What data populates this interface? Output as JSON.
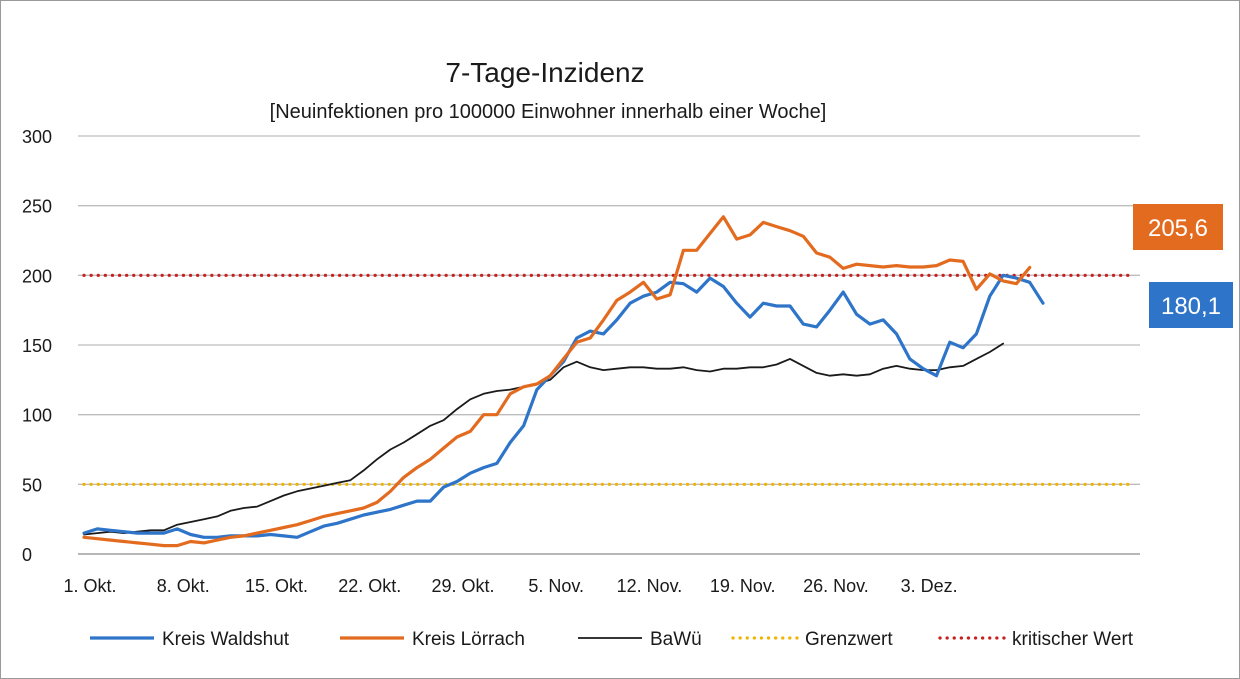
{
  "chart_data": {
    "type": "line",
    "title": "7-Tage-Inzidenz",
    "subtitle": "[Neuinfektionen  pro 100000 Einwohner innerhalb einer Woche]",
    "x_labels": [
      "1. Okt.",
      "8. Okt.",
      "15. Okt.",
      "22. Okt.",
      "29. Okt.",
      "5. Nov.",
      "12. Nov.",
      "19. Nov.",
      "26. Nov.",
      "3. Dez."
    ],
    "ylim": [
      0,
      300
    ],
    "yticks": [
      0,
      50,
      100,
      150,
      200,
      250,
      300
    ],
    "grid": true,
    "legend_position": "bottom",
    "series": [
      {
        "name": "Kreis Waldshut",
        "color": "#2e75c9",
        "style": "solid",
        "values": [
          15,
          18,
          17,
          16,
          15,
          15,
          15,
          18,
          14,
          12,
          12,
          13,
          13,
          13,
          14,
          13,
          12,
          16,
          20,
          22,
          25,
          28,
          30,
          32,
          35,
          38,
          38,
          48,
          52,
          58,
          62,
          65,
          80,
          92,
          118,
          128,
          138,
          155,
          160,
          158,
          168,
          180,
          185,
          188,
          195,
          194,
          188,
          198,
          192,
          180,
          170,
          180,
          178,
          178,
          165,
          163,
          175,
          188,
          172,
          165,
          168,
          158,
          140,
          133,
          128,
          152,
          148,
          158,
          185,
          200,
          198,
          195,
          180
        ]
      },
      {
        "name": "Kreis Lörrach",
        "color": "#e36b1f",
        "style": "solid",
        "values": [
          12,
          11,
          10,
          9,
          8,
          7,
          6,
          6,
          9,
          8,
          10,
          12,
          13,
          15,
          17,
          19,
          21,
          24,
          27,
          29,
          31,
          33,
          37,
          45,
          55,
          62,
          68,
          76,
          84,
          88,
          100,
          100,
          115,
          120,
          122,
          128,
          140,
          152,
          155,
          168,
          182,
          188,
          195,
          183,
          186,
          218,
          218,
          230,
          242,
          226,
          229,
          238,
          235,
          232,
          228,
          216,
          213,
          205,
          208,
          207,
          206,
          207,
          206,
          206,
          207,
          211,
          210,
          190,
          201,
          196,
          194,
          205.6
        ]
      },
      {
        "name": "BaWü",
        "color": "#1a1a1a",
        "style": "solid",
        "values": [
          14,
          15,
          16,
          15,
          16,
          17,
          17,
          21,
          23,
          25,
          27,
          31,
          33,
          34,
          38,
          42,
          45,
          47,
          49,
          51,
          53,
          60,
          68,
          75,
          80,
          86,
          92,
          96,
          104,
          111,
          115,
          117,
          118,
          120,
          122,
          125,
          134,
          138,
          134,
          132,
          133,
          134,
          134,
          133,
          133,
          134,
          132,
          131,
          133,
          133,
          134,
          134,
          136,
          140,
          135,
          130,
          128,
          129,
          128,
          129,
          133,
          135,
          133,
          132,
          132,
          134,
          135,
          140,
          145,
          151
        ]
      },
      {
        "name": "Grenzwert",
        "color": "#f0b400",
        "style": "dotted",
        "values": [
          50,
          50
        ]
      },
      {
        "name": "kritischer Wert",
        "color": "#c8201e",
        "style": "dotted",
        "values": [
          200,
          200
        ]
      }
    ],
    "callouts": [
      {
        "series": "Kreis Lörrach",
        "text": "205,6",
        "color": "#e36b1f"
      },
      {
        "series": "Kreis Waldshut",
        "text": "180,1",
        "color": "#2e75c9"
      }
    ]
  }
}
